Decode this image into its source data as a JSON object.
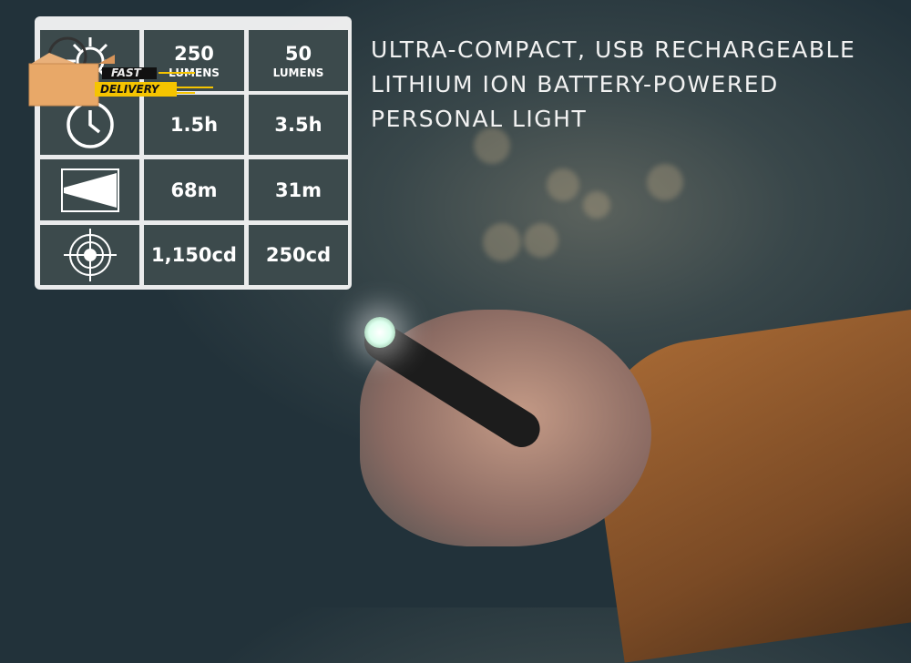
{
  "headline": [
    "ULTRA-COMPACT, USB RECHARGEABLE",
    "LITHIUM ION BATTERY-POWERED",
    "PERSONAL LIGHT"
  ],
  "badge": {
    "line1": "FAST",
    "line2": "DELIVERY"
  },
  "specs": [
    {
      "icon": "lumens-burst-icon",
      "high": "250",
      "high_unit": "LUMENS",
      "low": "50",
      "low_unit": "LUMENS"
    },
    {
      "icon": "clock-icon",
      "high": "1.5h",
      "low": "3.5h"
    },
    {
      "icon": "beam-distance-icon",
      "high": "68m",
      "low": "31m"
    },
    {
      "icon": "target-candela-icon",
      "high": "1,150cd",
      "low": "250cd"
    }
  ],
  "colors": {
    "cell": "#3c4a4c",
    "frame": "#f5f5f5",
    "badge_yellow": "#f5c400",
    "box": "#e8a868"
  }
}
